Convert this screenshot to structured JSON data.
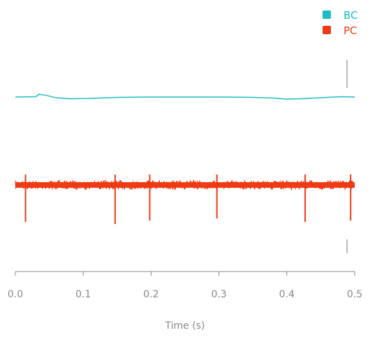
{
  "chart_data": {
    "type": "line",
    "xlabel": "Time (s)",
    "xlim": [
      0.0,
      0.5
    ],
    "x_ticks": [
      0.0,
      0.1,
      0.2,
      0.3,
      0.4,
      0.5
    ],
    "x_tick_labels": [
      "0.0",
      "0.1",
      "0.2",
      "0.3",
      "0.4",
      "0.5"
    ],
    "legend_position": "top-right",
    "grid": false,
    "series": [
      {
        "name": "BC",
        "color": "#1bbcc4",
        "x": [
          0.0,
          0.03,
          0.035,
          0.045,
          0.06,
          0.08,
          0.11,
          0.15,
          0.2,
          0.25,
          0.3,
          0.35,
          0.38,
          0.4,
          0.42,
          0.45,
          0.48,
          0.5
        ],
        "y": [
          0.0,
          0.01,
          0.08,
          0.05,
          -0.02,
          -0.05,
          -0.04,
          -0.01,
          0.0,
          0.0,
          0.0,
          -0.01,
          -0.03,
          -0.06,
          -0.05,
          -0.02,
          0.01,
          0.0
        ]
      },
      {
        "name": "PC",
        "color": "#f03a14",
        "baseline_noise": "dense",
        "spike_times": [
          0.015,
          0.147,
          0.198,
          0.297,
          0.427,
          0.494
        ]
      }
    ]
  }
}
